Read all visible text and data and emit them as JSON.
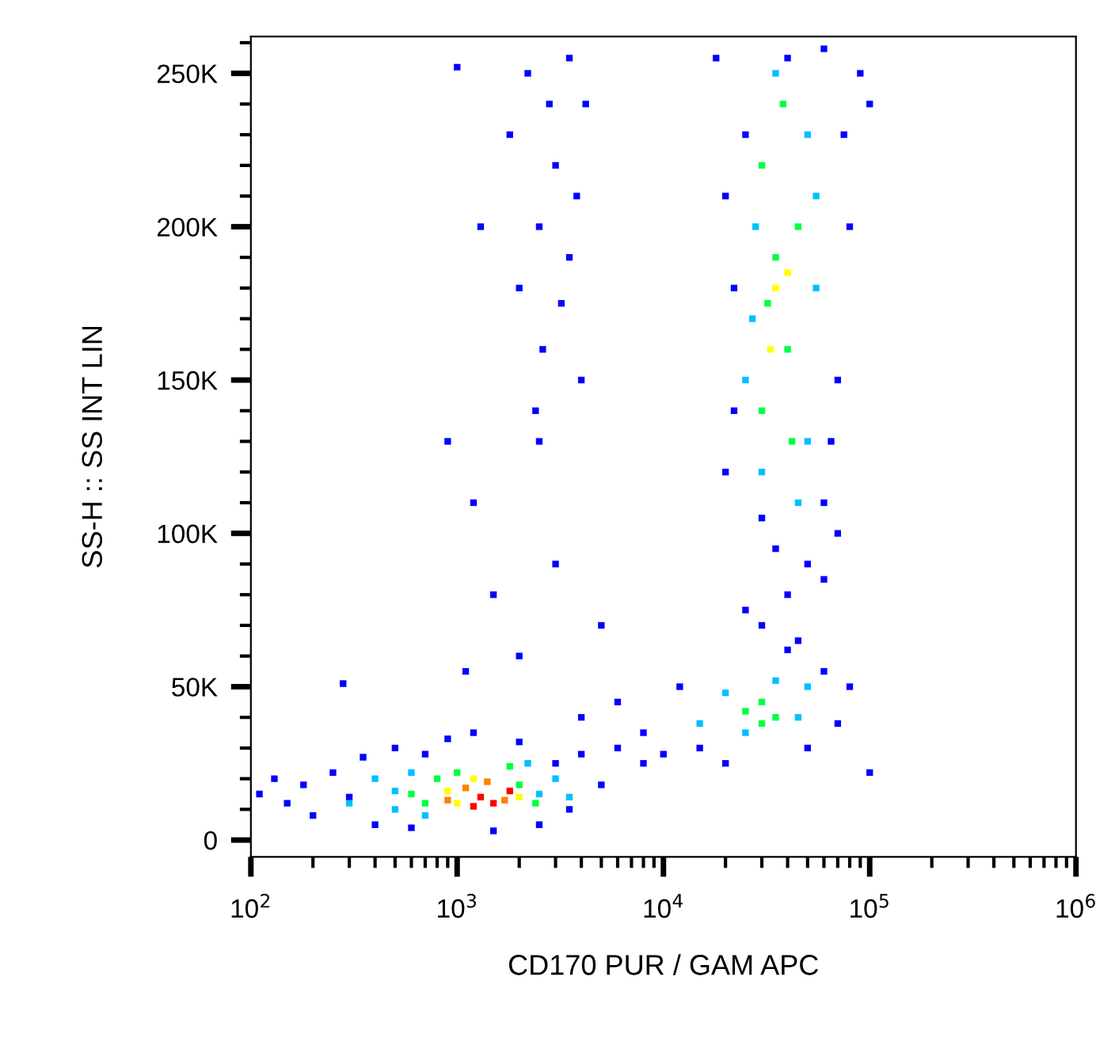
{
  "chart_data": {
    "type": "scatter",
    "xlabel": "CD170 PUR / GAM APC",
    "ylabel": "SS-H :: SS INT LIN",
    "log": "x",
    "grid": false,
    "marker": "square",
    "xlim": [
      100,
      1000000
    ],
    "xticks": [
      {
        "value": 100,
        "label": "10$^{2}$"
      },
      {
        "value": 1000,
        "label": "10$^{3}$"
      },
      {
        "value": 10000,
        "label": "10$^{4}$"
      },
      {
        "value": 100000,
        "label": "10$^{5}$"
      },
      {
        "value": 1000000,
        "label": "10$^{6}$"
      }
    ],
    "ylim": [
      -5500,
      262000
    ],
    "yticks": [
      0,
      {
        "value": 50000,
        "label": "50K"
      },
      {
        "value": 100000,
        "label": "100K"
      },
      {
        "value": 150000,
        "label": "150K"
      },
      {
        "value": 200000,
        "label": "200K"
      },
      {
        "value": 250000,
        "label": "250K"
      }
    ],
    "series": [
      {
        "color": "#0000ff",
        "x": [
          110,
          130,
          150,
          180,
          200,
          250,
          300,
          350,
          400,
          500,
          600,
          700,
          900,
          1200,
          1500,
          2000,
          2500,
          3000,
          3500,
          4000,
          5000,
          6000,
          8000,
          280,
          4000,
          6000,
          8000,
          10000,
          12000,
          15000,
          20000,
          50000,
          70000,
          80000,
          100000,
          60000,
          40000,
          2000,
          1500,
          3000,
          1200,
          2500,
          900,
          1100,
          5000,
          2200,
          2800,
          3500,
          3000,
          2500,
          3800,
          2000,
          3200,
          2600,
          4000,
          3500,
          1800,
          4200,
          1000,
          1300,
          2400,
          30000,
          40000,
          50000,
          45000,
          35000,
          60000,
          25000,
          70000,
          20000,
          25000,
          22000,
          60000,
          70000,
          80000,
          90000,
          100000,
          18000,
          40000,
          60000,
          30000,
          75000,
          65000,
          22000,
          20000
        ],
        "values": [
          15000,
          20000,
          12000,
          18000,
          8000,
          22000,
          14000,
          27000,
          5000,
          30000,
          4000,
          28000,
          33000,
          35000,
          3000,
          32000,
          5000,
          25000,
          10000,
          28000,
          18000,
          30000,
          25000,
          51000,
          40000,
          45000,
          35000,
          28000,
          50000,
          30000,
          25000,
          30000,
          38000,
          50000,
          22000,
          55000,
          62000,
          60000,
          80000,
          90000,
          110000,
          130000,
          130000,
          55000,
          70000,
          250000,
          240000,
          255000,
          220000,
          200000,
          210000,
          180000,
          175000,
          160000,
          150000,
          190000,
          230000,
          240000,
          252000,
          200000,
          140000,
          70000,
          80000,
          90000,
          65000,
          95000,
          85000,
          75000,
          100000,
          120000,
          230000,
          180000,
          110000,
          150000,
          200000,
          250000,
          240000,
          255000,
          255000,
          258000,
          105000,
          230000,
          130000,
          140000,
          210000
        ]
      },
      {
        "color": "#00c0ff",
        "x": [
          300,
          400,
          500,
          600,
          700,
          2500,
          3000,
          3500,
          500,
          2200,
          15000,
          20000,
          45000,
          50000,
          25000,
          35000,
          25000,
          30000,
          50000,
          55000,
          28000,
          50000,
          35000,
          45000,
          27000,
          55000
        ],
        "values": [
          12000,
          20000,
          10000,
          22000,
          8000,
          15000,
          20000,
          14000,
          16000,
          25000,
          38000,
          48000,
          40000,
          50000,
          35000,
          52000,
          150000,
          120000,
          130000,
          180000,
          200000,
          230000,
          250000,
          110000,
          170000,
          210000
        ]
      },
      {
        "color": "#00ff40",
        "x": [
          600,
          800,
          700,
          2000,
          2400,
          1000,
          1800,
          25000,
          30000,
          35000,
          30000,
          30000,
          40000,
          35000,
          30000,
          45000,
          32000,
          42000,
          38000
        ],
        "values": [
          15000,
          20000,
          12000,
          18000,
          12000,
          22000,
          24000,
          42000,
          45000,
          40000,
          38000,
          140000,
          160000,
          190000,
          220000,
          200000,
          175000,
          130000,
          240000
        ]
      },
      {
        "color": "#ffff00",
        "x": [
          900,
          1000,
          2000,
          1200,
          35000,
          40000,
          33000
        ],
        "values": [
          16000,
          12000,
          14000,
          20000,
          180000,
          185000,
          160000
        ]
      },
      {
        "color": "#ff8000",
        "x": [
          1100,
          1700,
          1400,
          900
        ],
        "values": [
          17000,
          13000,
          19000,
          13000
        ]
      },
      {
        "color": "#ff0000",
        "x": [
          1300,
          1500,
          1800,
          1200
        ],
        "values": [
          14000,
          12000,
          16000,
          11000
        ]
      }
    ]
  }
}
